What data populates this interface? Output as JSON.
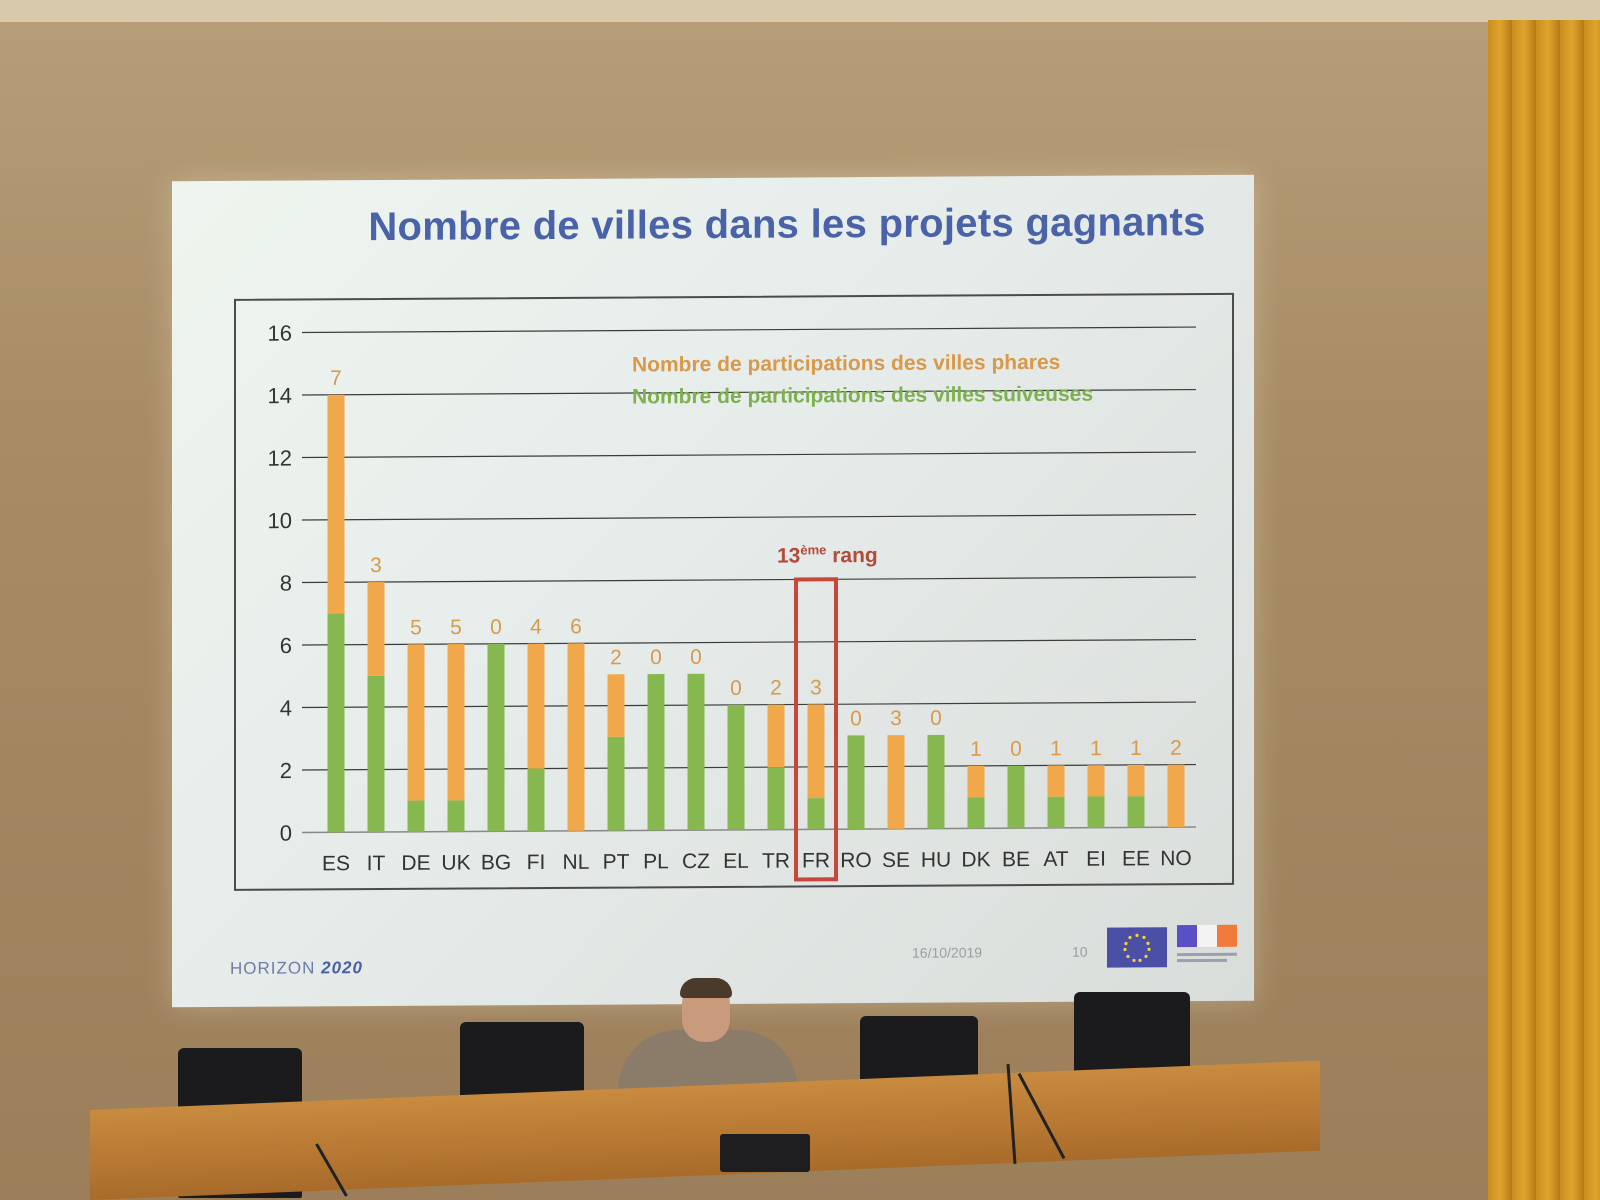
{
  "slide": {
    "title": "Nombre de villes dans les projets gagnants",
    "date": "16/10/2019",
    "page": "10",
    "logo_text_a": "HORIZON",
    "logo_text_b": "2020"
  },
  "annotation": {
    "rank_number": "13",
    "rank_sup": "ème",
    "rank_word": "rang",
    "highlight_category": "FR"
  },
  "colors": {
    "phares": "#f0a84a",
    "suiveuses": "#86b84f",
    "highlight": "#c9463a",
    "axis_text": "#333333"
  },
  "chart_data": {
    "type": "bar",
    "stacked": true,
    "title": "Nombre de villes dans les projets gagnants",
    "categories": [
      "ES",
      "IT",
      "DE",
      "UK",
      "BG",
      "FI",
      "NL",
      "PT",
      "PL",
      "CZ",
      "EL",
      "TR",
      "FR",
      "RO",
      "SE",
      "HU",
      "DK",
      "BE",
      "AT",
      "EI",
      "EE",
      "NO"
    ],
    "series": [
      {
        "name": "Nombre de participations des villes suiveuses",
        "color": "#86b84f",
        "values": [
          7,
          5,
          1,
          1,
          6,
          2,
          0,
          3,
          5,
          5,
          4,
          2,
          1,
          3,
          0,
          3,
          1,
          2,
          1,
          1,
          1,
          0
        ]
      },
      {
        "name": "Nombre de participations des villes phares",
        "color": "#f0a84a",
        "values": [
          7,
          3,
          5,
          5,
          0,
          4,
          6,
          2,
          0,
          0,
          0,
          2,
          3,
          0,
          3,
          0,
          1,
          0,
          1,
          1,
          1,
          2
        ]
      }
    ],
    "data_labels": [
      "7",
      "3",
      "5",
      "5",
      "0",
      "4",
      "6",
      "2",
      "0",
      "0",
      "0",
      "2",
      "3",
      "0",
      "3",
      "0",
      "1",
      "0",
      "1",
      "1",
      "1",
      "2"
    ],
    "yticks": [
      "0",
      "2",
      "4",
      "6",
      "8",
      "10",
      "12",
      "14",
      "16"
    ],
    "ylim": [
      0,
      16
    ],
    "grid": true,
    "legend_position": "top-center"
  }
}
